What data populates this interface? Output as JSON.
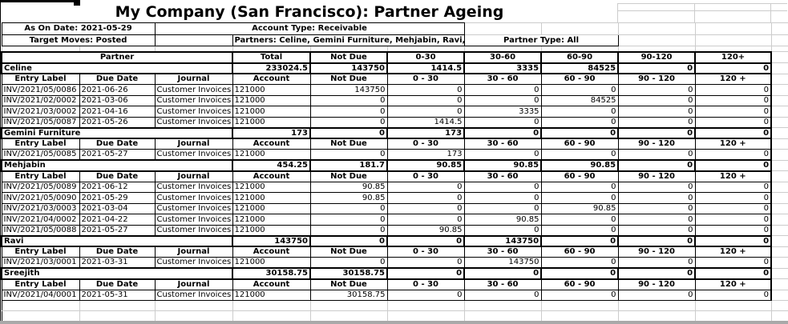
{
  "title": "My Company (San Francisco): Partner Ageing",
  "filters": {
    "as_on_date": "As On Date: 2021-05-29",
    "account_type": "Account Type: Receivable",
    "target_moves": "Target Moves: Posted",
    "partners": "Partners: Celine, Gemini Furniture, Mehjabin, Ravi, Sreejith",
    "partner_type": "Partner Type: All"
  },
  "table": {
    "main_header": [
      "Partner",
      "Total",
      "Not Due",
      "0-30",
      "30-60",
      "60-90",
      "90-120",
      "120+"
    ],
    "sub_header": [
      "Entry Label",
      "Due Date",
      "Journal",
      "Account",
      "Not Due",
      "0 - 30",
      "30 - 60",
      "60 - 90",
      "90 - 120",
      "120 +"
    ],
    "sections": [
      {
        "partner": "Celine",
        "totals": [
          "233024.5",
          "143750",
          "1414.5",
          "3335",
          "84525",
          "0",
          "0"
        ],
        "rows": [
          [
            "INV/2021/05/0086",
            "2021-06-26",
            "Customer Invoices",
            "121000",
            "143750",
            "0",
            "0",
            "0",
            "0",
            "0"
          ],
          [
            "INV/2021/02/0002",
            "2021-03-06",
            "Customer Invoices",
            "121000",
            "0",
            "0",
            "0",
            "84525",
            "0",
            "0"
          ],
          [
            "INV/2021/03/0002",
            "2021-04-16",
            "Customer Invoices",
            "121000",
            "0",
            "0",
            "3335",
            "0",
            "0",
            "0"
          ],
          [
            "INV/2021/05/0087",
            "2021-05-26",
            "Customer Invoices",
            "121000",
            "0",
            "1414.5",
            "0",
            "0",
            "0",
            "0"
          ]
        ]
      },
      {
        "partner": "Gemini Furniture",
        "totals": [
          "173",
          "0",
          "173",
          "0",
          "0",
          "0",
          "0"
        ],
        "rows": [
          [
            "INV/2021/05/0085",
            "2021-05-27",
            "Customer Invoices",
            "121000",
            "0",
            "173",
            "0",
            "0",
            "0",
            "0"
          ]
        ]
      },
      {
        "partner": "Mehjabin",
        "totals": [
          "454.25",
          "181.7",
          "90.85",
          "90.85",
          "90.85",
          "0",
          "0"
        ],
        "rows": [
          [
            "INV/2021/05/0089",
            "2021-06-12",
            "Customer Invoices",
            "121000",
            "90.85",
            "0",
            "0",
            "0",
            "0",
            "0"
          ],
          [
            "INV/2021/05/0090",
            "2021-05-29",
            "Customer Invoices",
            "121000",
            "90.85",
            "0",
            "0",
            "0",
            "0",
            "0"
          ],
          [
            "INV/2021/03/0003",
            "2021-03-04",
            "Customer Invoices",
            "121000",
            "0",
            "0",
            "0",
            "90.85",
            "0",
            "0"
          ],
          [
            "INV/2021/04/0002",
            "2021-04-22",
            "Customer Invoices",
            "121000",
            "0",
            "0",
            "90.85",
            "0",
            "0",
            "0"
          ],
          [
            "INV/2021/05/0088",
            "2021-05-27",
            "Customer Invoices",
            "121000",
            "0",
            "90.85",
            "0",
            "0",
            "0",
            "0"
          ]
        ]
      },
      {
        "partner": "Ravi",
        "totals": [
          "143750",
          "0",
          "0",
          "143750",
          "0",
          "0",
          "0"
        ],
        "rows": [
          [
            "INV/2021/03/0001",
            "2021-03-31",
            "Customer Invoices",
            "121000",
            "0",
            "0",
            "143750",
            "0",
            "0",
            "0"
          ]
        ]
      },
      {
        "partner": "Sreejith",
        "totals": [
          "30158.75",
          "30158.75",
          "0",
          "0",
          "0",
          "0",
          "0"
        ],
        "rows": [
          [
            "INV/2021/04/0001",
            "2021-05-31",
            "Customer Invoices",
            "121000",
            "30158.75",
            "0",
            "0",
            "0",
            "0",
            "0"
          ]
        ]
      }
    ]
  }
}
